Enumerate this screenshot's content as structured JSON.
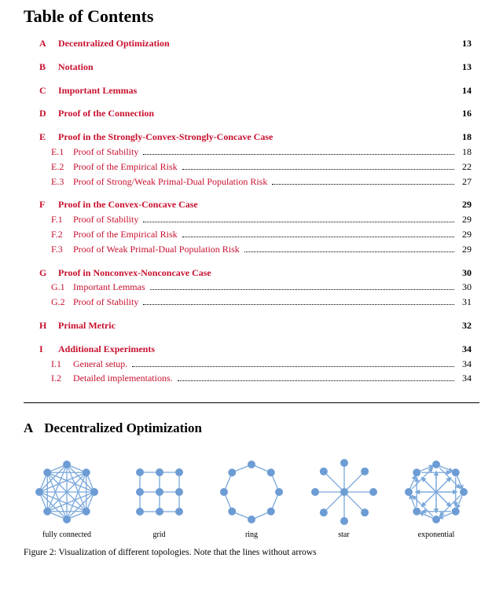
{
  "title": "Table of Contents",
  "link_color": "#c8102e",
  "node_color": "#6d9cd4",
  "edge_color": "#7aa8db",
  "sections": [
    {
      "label": "A",
      "text": "Decentralized Optimization",
      "page": "13",
      "subs": []
    },
    {
      "label": "B",
      "text": "Notation",
      "page": "13",
      "subs": []
    },
    {
      "label": "C",
      "text": "Important Lemmas",
      "page": "14",
      "subs": []
    },
    {
      "label": "D",
      "text": "Proof of the Connection",
      "page": "16",
      "subs": []
    },
    {
      "label": "E",
      "text": "Proof in the Strongly-Convex-Strongly-Concave Case",
      "page": "18",
      "subs": [
        {
          "label": "E.1",
          "text": "Proof of Stability",
          "page": "18"
        },
        {
          "label": "E.2",
          "text": "Proof of the Empirical Risk",
          "page": "22"
        },
        {
          "label": "E.3",
          "text": "Proof of Strong/Weak Primal-Dual Population Risk",
          "page": "27"
        }
      ]
    },
    {
      "label": "F",
      "text": "Proof in the Convex-Concave Case",
      "page": "29",
      "subs": [
        {
          "label": "F.1",
          "text": "Proof of Stability",
          "page": "29"
        },
        {
          "label": "F.2",
          "text": "Proof of the Empirical Risk",
          "page": "29"
        },
        {
          "label": "F.3",
          "text": "Proof of Weak Primal-Dual Population Risk",
          "page": "29"
        }
      ]
    },
    {
      "label": "G",
      "text": "Proof in Nonconvex-Nonconcave Case",
      "page": "30",
      "subs": [
        {
          "label": "G.1",
          "text": "Important Lemmas",
          "page": "30"
        },
        {
          "label": "G.2",
          "text": "Proof of Stability",
          "page": "31"
        }
      ]
    },
    {
      "label": "H",
      "text": "Primal Metric",
      "page": "32",
      "subs": []
    },
    {
      "label": "I",
      "text": "Additional Experiments",
      "page": "34",
      "subs": [
        {
          "label": "I.1",
          "text": "General setup.",
          "page": "34"
        },
        {
          "label": "I.2",
          "text": "Detailed implementations.",
          "page": "34"
        }
      ]
    }
  ],
  "body_section": {
    "label": "A",
    "title": "Decentralized Optimization"
  },
  "graphs": {
    "node_radius": 5,
    "types": [
      {
        "key": "fully",
        "caption": "fully connected",
        "n": 8
      },
      {
        "key": "grid",
        "caption": "grid"
      },
      {
        "key": "ring",
        "caption": "ring",
        "n": 8
      },
      {
        "key": "star",
        "caption": "star",
        "n": 8
      },
      {
        "key": "exponential",
        "caption": "exponential",
        "n": 8
      }
    ]
  },
  "figure_caption_prefix": "Figure 2: Visualization of different topologies. Note that the lines without arrows"
}
